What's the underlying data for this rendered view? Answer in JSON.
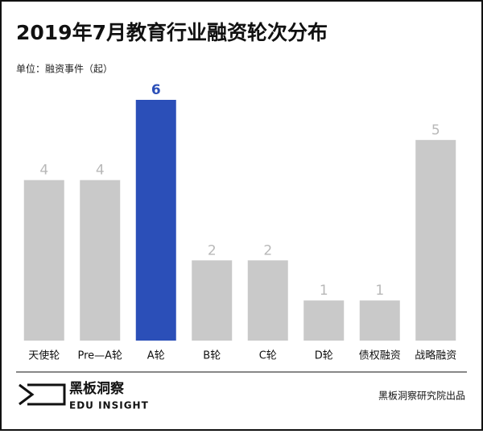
{
  "chart_data": {
    "type": "bar",
    "title": "2019年7月教育行业融资轮次分布",
    "subtitle": "单位：融资事件（起）",
    "categories": [
      "天使轮",
      "Pre—A轮",
      "A轮",
      "B轮",
      "C轮",
      "D轮",
      "债权融资",
      "战略融资"
    ],
    "values": [
      4,
      4,
      6,
      2,
      2,
      1,
      1,
      5
    ],
    "colors": [
      "#c9c9c9",
      "#c9c9c9",
      "#2b4fb8",
      "#c9c9c9",
      "#c9c9c9",
      "#c9c9c9",
      "#c9c9c9",
      "#c9c9c9"
    ],
    "label_colors": [
      "#b8b8b8",
      "#b8b8b8",
      "#2b4fb8",
      "#b8b8b8",
      "#b8b8b8",
      "#b8b8b8",
      "#b8b8b8",
      "#b8b8b8"
    ]
  },
  "footer": {
    "logo_name": "黑板洞察",
    "logo_sub": "EDU INSIGHT",
    "source": "黑板洞察研究院出品"
  }
}
